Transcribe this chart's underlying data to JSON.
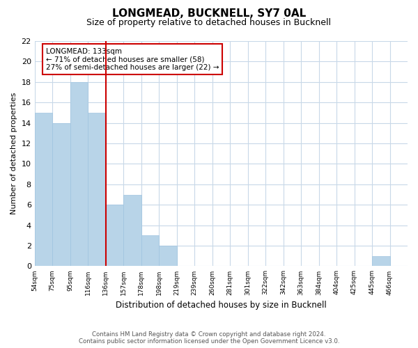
{
  "title": "LONGMEAD, BUCKNELL, SY7 0AL",
  "subtitle": "Size of property relative to detached houses in Bucknell",
  "xlabel": "Distribution of detached houses by size in Bucknell",
  "ylabel": "Number of detached properties",
  "bin_labels": [
    "54sqm",
    "75sqm",
    "95sqm",
    "116sqm",
    "136sqm",
    "157sqm",
    "178sqm",
    "198sqm",
    "219sqm",
    "239sqm",
    "260sqm",
    "281sqm",
    "301sqm",
    "322sqm",
    "342sqm",
    "363sqm",
    "384sqm",
    "404sqm",
    "425sqm",
    "445sqm",
    "466sqm"
  ],
  "bar_heights": [
    15,
    14,
    18,
    15,
    6,
    7,
    3,
    2,
    0,
    0,
    0,
    0,
    0,
    0,
    0,
    0,
    0,
    0,
    0,
    1,
    0
  ],
  "bar_color": "#b8d4e8",
  "bar_edge_color": "#a0c4e0",
  "vline_x": 4,
  "vline_color": "#cc0000",
  "annotation_title": "LONGMEAD: 133sqm",
  "annotation_line1": "← 71% of detached houses are smaller (58)",
  "annotation_line2": "27% of semi-detached houses are larger (22) →",
  "annotation_box_color": "#ffffff",
  "annotation_box_edge": "#cc0000",
  "ylim": [
    0,
    22
  ],
  "yticks": [
    0,
    2,
    4,
    6,
    8,
    10,
    12,
    14,
    16,
    18,
    20,
    22
  ],
  "footer_line1": "Contains HM Land Registry data © Crown copyright and database right 2024.",
  "footer_line2": "Contains public sector information licensed under the Open Government Licence v3.0.",
  "background_color": "#ffffff",
  "grid_color": "#c8d8e8"
}
